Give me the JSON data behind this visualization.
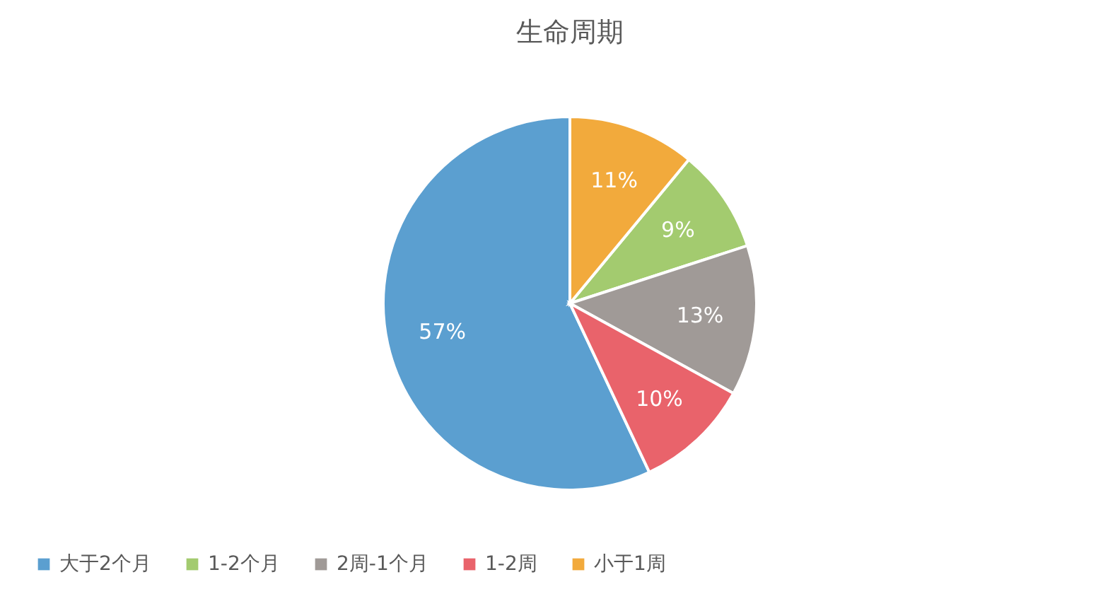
{
  "chart_data": {
    "type": "pie",
    "title": "生命周期",
    "categories": [
      "大于2个月",
      "1-2个月",
      "2周-1个月",
      "1-2周",
      "小于1周"
    ],
    "values": [
      57,
      9,
      13,
      10,
      11
    ],
    "colors": [
      "#5b9fd0",
      "#a3cb6f",
      "#a09a97",
      "#e9636b",
      "#f2aa3c"
    ],
    "value_labels": [
      "57%",
      "9%",
      "13%",
      "10%",
      "11%"
    ],
    "legend": "bottom"
  }
}
